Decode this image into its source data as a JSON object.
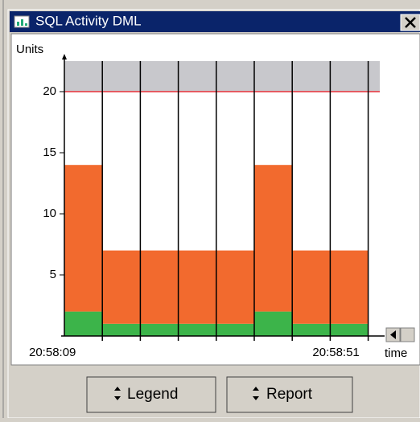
{
  "window": {
    "title": "SQL Activity DML",
    "buttons": [
      "Legend",
      "Report"
    ]
  },
  "chart_data": {
    "type": "stacked_bar",
    "y_label": "Units",
    "x_label": "time",
    "categories": [
      null,
      null,
      null,
      null,
      null,
      null,
      null,
      null
    ],
    "x_labels": [
      "20:58:09",
      "20:58:51"
    ],
    "series": [
      {
        "color": "#3cb44a",
        "values": [
          2,
          1,
          1,
          1,
          1,
          2,
          1,
          1
        ]
      },
      {
        "color": "#f26a2e",
        "values": [
          12,
          6,
          6,
          6,
          6,
          12,
          6,
          6
        ]
      }
    ],
    "threshold": 20,
    "threshold_color": "#e8303a",
    "threshold_band_color": "#c8c8cc",
    "ylim": [
      0,
      22.5
    ],
    "yticks": [
      5,
      10,
      15,
      20
    ]
  }
}
